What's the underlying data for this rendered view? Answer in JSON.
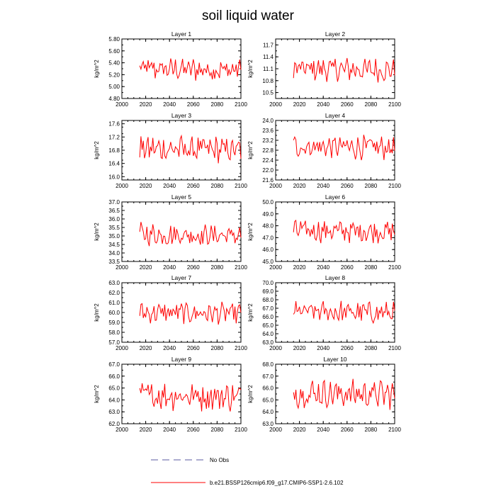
{
  "title": "soil liquid water",
  "legend": {
    "obs_label": "No Obs",
    "model_label": "b.e21.BSSP126cmip6.f09_g17.CMIP6-SSP1-2.6.102",
    "obs_color": "#5a5aa0",
    "model_color": "#ff0000"
  },
  "chart_data": [
    {
      "type": "line",
      "title": "Layer 1",
      "ylabel": "kg/m^2",
      "xlim": [
        2000,
        2100
      ],
      "ylim": [
        4.8,
        5.8
      ],
      "yticks": [
        "4.80",
        "5.00",
        "5.20",
        "5.40",
        "5.60",
        "5.80"
      ],
      "xticks": [
        "2000",
        "2020",
        "2040",
        "2060",
        "2080",
        "2100"
      ],
      "series": [
        {
          "color": "#ff0000",
          "x": [],
          "values": []
        }
      ]
    },
    {
      "type": "line",
      "title": "Layer 2",
      "ylabel": "kg/m^2",
      "xlim": [
        2000,
        2100
      ],
      "ylim": [
        10.35,
        11.85
      ],
      "yticks": [
        "10.5",
        "10.8",
        "11.1",
        "11.4",
        "11.7"
      ],
      "xticks": [
        "2000",
        "2020",
        "2040",
        "2060",
        "2080",
        "2100"
      ],
      "series": [
        {
          "color": "#ff0000",
          "x": [],
          "values": []
        }
      ]
    },
    {
      "type": "line",
      "title": "Layer 3",
      "ylabel": "kg/m^2",
      "xlim": [
        2000,
        2100
      ],
      "ylim": [
        15.9,
        17.7
      ],
      "yticks": [
        "16.0",
        "16.4",
        "16.8",
        "17.2",
        "17.6"
      ],
      "xticks": [
        "2000",
        "2020",
        "2040",
        "2060",
        "2080",
        "2100"
      ],
      "series": [
        {
          "color": "#ff0000",
          "x": [],
          "values": []
        }
      ]
    },
    {
      "type": "line",
      "title": "Layer 4",
      "ylabel": "kg/m^2",
      "xlim": [
        2000,
        2100
      ],
      "ylim": [
        21.6,
        24.0
      ],
      "yticks": [
        "21.6",
        "22.0",
        "22.4",
        "22.8",
        "23.2",
        "23.6",
        "24.0"
      ],
      "xticks": [
        "2000",
        "2020",
        "2040",
        "2060",
        "2080",
        "2100"
      ],
      "series": [
        {
          "color": "#ff0000",
          "x": [],
          "values": []
        }
      ]
    },
    {
      "type": "line",
      "title": "Layer 5",
      "ylabel": "kg/m^2",
      "xlim": [
        2000,
        2100
      ],
      "ylim": [
        33.5,
        37.0
      ],
      "yticks": [
        "33.5",
        "34.0",
        "34.5",
        "35.0",
        "35.5",
        "36.0",
        "36.5",
        "37.0"
      ],
      "xticks": [
        "2000",
        "2020",
        "2040",
        "2060",
        "2080",
        "2100"
      ],
      "series": [
        {
          "color": "#ff0000",
          "x": [],
          "values": []
        }
      ]
    },
    {
      "type": "line",
      "title": "Layer 6",
      "ylabel": "kg/m^2",
      "xlim": [
        2000,
        2100
      ],
      "ylim": [
        45.0,
        50.0
      ],
      "yticks": [
        "45.0",
        "46.0",
        "47.0",
        "48.0",
        "49.0",
        "50.0"
      ],
      "xticks": [
        "2000",
        "2020",
        "2040",
        "2060",
        "2080",
        "2100"
      ],
      "series": [
        {
          "color": "#ff0000",
          "x": [],
          "values": []
        }
      ]
    },
    {
      "type": "line",
      "title": "Layer 7",
      "ylabel": "kg/m^2",
      "xlim": [
        2000,
        2100
      ],
      "ylim": [
        57.0,
        63.0
      ],
      "yticks": [
        "57.0",
        "58.0",
        "59.0",
        "60.0",
        "61.0",
        "62.0",
        "63.0"
      ],
      "xticks": [
        "2000",
        "2020",
        "2040",
        "2060",
        "2080",
        "2100"
      ],
      "series": [
        {
          "color": "#ff0000",
          "x": [],
          "values": []
        }
      ]
    },
    {
      "type": "line",
      "title": "Layer 8",
      "ylabel": "kg/m^2",
      "xlim": [
        2000,
        2100
      ],
      "ylim": [
        63.0,
        70.0
      ],
      "yticks": [
        "63.0",
        "64.0",
        "65.0",
        "66.0",
        "67.0",
        "68.0",
        "69.0",
        "70.0"
      ],
      "xticks": [
        "2000",
        "2020",
        "2040",
        "2060",
        "2080",
        "2100"
      ],
      "series": [
        {
          "color": "#ff0000",
          "x": [],
          "values": []
        }
      ]
    },
    {
      "type": "line",
      "title": "Layer 9",
      "ylabel": "kg/m^2",
      "xlim": [
        2000,
        2100
      ],
      "ylim": [
        62.0,
        67.0
      ],
      "yticks": [
        "62.0",
        "63.0",
        "64.0",
        "65.0",
        "66.0",
        "67.0"
      ],
      "xticks": [
        "2000",
        "2020",
        "2040",
        "2060",
        "2080",
        "2100"
      ],
      "series": [
        {
          "color": "#ff0000",
          "x": [],
          "values": []
        }
      ]
    },
    {
      "type": "line",
      "title": "Layer 10",
      "ylabel": "kg/m^2",
      "xlim": [
        2000,
        2100
      ],
      "ylim": [
        63.0,
        68.0
      ],
      "yticks": [
        "63.0",
        "64.0",
        "65.0",
        "66.0",
        "67.0",
        "68.0"
      ],
      "xticks": [
        "2000",
        "2020",
        "2040",
        "2060",
        "2080",
        "2100"
      ],
      "series": [
        {
          "color": "#ff0000",
          "x": [],
          "values": []
        }
      ]
    }
  ]
}
